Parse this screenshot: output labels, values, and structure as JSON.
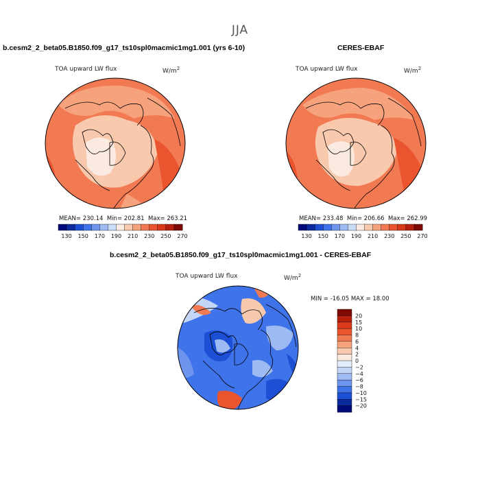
{
  "season": "JJA",
  "top_left": {
    "header": "b.cesm2_2_beta05.B1850.f09_g17_ts10spl0macmic1mg1.001 (yrs 6-10)",
    "variable": "TOA upward LW flux",
    "units": "W/m",
    "units_exp": "2",
    "mean_label": "MEAN=",
    "mean": "230.14",
    "min_label": "Min=",
    "min": "202.81",
    "max_label": "Max=",
    "max": "263.21"
  },
  "top_right": {
    "header": "CERES-EBAF",
    "variable": "TOA upward LW flux",
    "units": "W/m",
    "units_exp": "2",
    "mean_label": "MEAN=",
    "mean": "233.48",
    "min_label": "Min=",
    "min": "206.66",
    "max_label": "Max=",
    "max": "262.99"
  },
  "bottom": {
    "header": "b.cesm2_2_beta05.B1850.f09_g17_ts10spl0macmic1mg1.001 - CERES-EBAF",
    "variable": "TOA upward LW flux",
    "units": "W/m",
    "units_exp": "2",
    "minmax": "MIN = -16.05 MAX =  18.00"
  },
  "colorbar_h": {
    "labels": [
      "130",
      "150",
      "170",
      "190",
      "210",
      "230",
      "250",
      "270"
    ],
    "colors": [
      "#000a7a",
      "#0b2a9e",
      "#1c4fd3",
      "#3f73ea",
      "#6d95ee",
      "#9ebaf3",
      "#cadcf8",
      "#fbeae0",
      "#f9c9ad",
      "#f5a27d",
      "#f27a53",
      "#ea5530",
      "#d83a1a",
      "#b7200d",
      "#7d0a04"
    ]
  },
  "colorbar_v": {
    "labels": [
      "20",
      "15",
      "10",
      "8",
      "6",
      "4",
      "2",
      "0",
      "−2",
      "−4",
      "−6",
      "−8",
      "−10",
      "−15",
      "−20"
    ],
    "colors": [
      "#7d0a04",
      "#b7200d",
      "#d83a1a",
      "#ea5530",
      "#f27a53",
      "#f5a27d",
      "#f9c9ad",
      "#fbeae0",
      "#e3ecfb",
      "#c3d6f7",
      "#9ebaf3",
      "#6d95ee",
      "#3f73ea",
      "#1c4fd3",
      "#0b2a9e",
      "#000a7a"
    ]
  }
}
